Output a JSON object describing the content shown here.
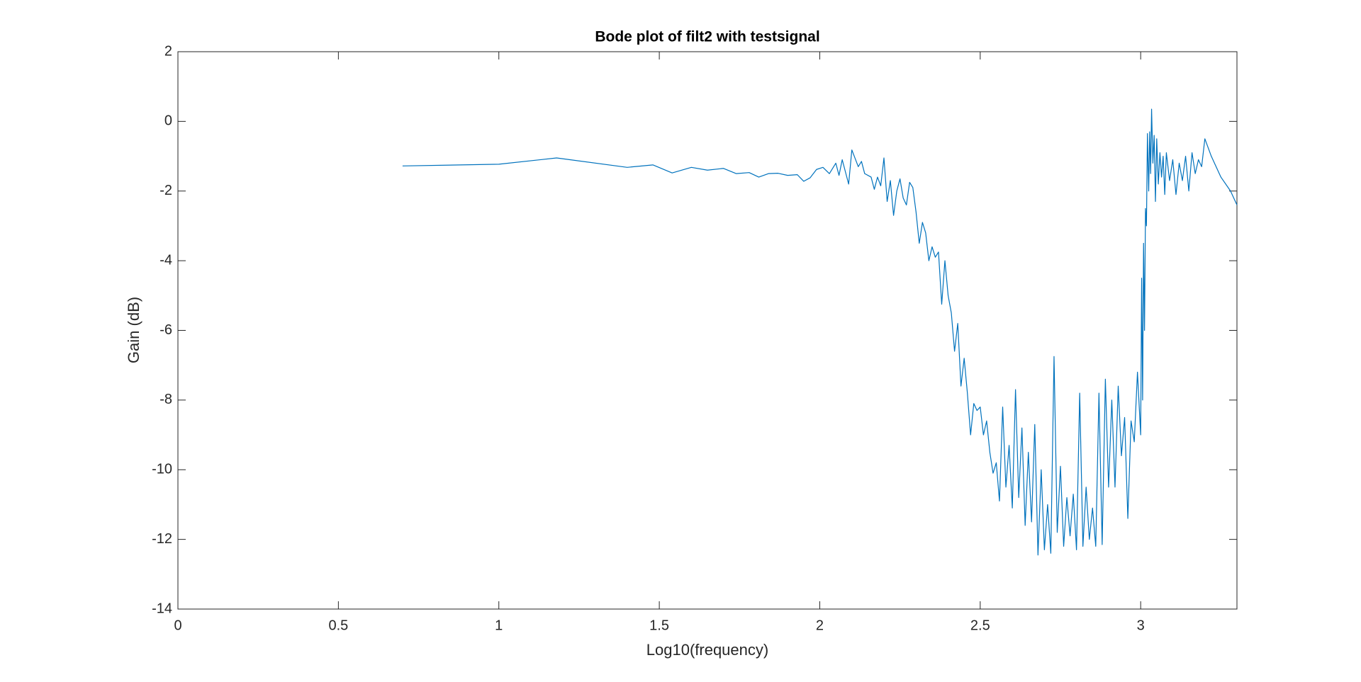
{
  "chart_data": {
    "type": "line",
    "title": "Bode plot of filt2 with testsignal",
    "xlabel": "Log10(frequency)",
    "ylabel": "Gain (dB)",
    "xlim": [
      0,
      3.3
    ],
    "ylim": [
      -14,
      2
    ],
    "xticks": [
      0,
      0.5,
      1,
      1.5,
      2,
      2.5,
      3
    ],
    "yticks": [
      -14,
      -12,
      -10,
      -8,
      -6,
      -4,
      -2,
      0,
      2
    ],
    "grid": false,
    "series": [
      {
        "color": "#0072bd",
        "x": [
          0.7,
          1.0,
          1.18,
          1.4,
          1.48,
          1.54,
          1.6,
          1.65,
          1.7,
          1.74,
          1.78,
          1.81,
          1.84,
          1.87,
          1.9,
          1.93,
          1.95,
          1.97,
          1.99,
          2.01,
          2.03,
          2.05,
          2.06,
          2.07,
          2.09,
          2.1,
          2.12,
          2.13,
          2.14,
          2.16,
          2.17,
          2.18,
          2.19,
          2.2,
          2.21,
          2.22,
          2.23,
          2.24,
          2.25,
          2.26,
          2.27,
          2.28,
          2.29,
          2.3,
          2.31,
          2.32,
          2.33,
          2.34,
          2.35,
          2.36,
          2.37,
          2.38,
          2.39,
          2.4,
          2.41,
          2.42,
          2.43,
          2.44,
          2.45,
          2.46,
          2.47,
          2.48,
          2.49,
          2.5,
          2.51,
          2.52,
          2.53,
          2.54,
          2.55,
          2.56,
          2.57,
          2.58,
          2.59,
          2.6,
          2.61,
          2.62,
          2.63,
          2.64,
          2.65,
          2.66,
          2.67,
          2.68,
          2.69,
          2.7,
          2.71,
          2.72,
          2.73,
          2.74,
          2.75,
          2.76,
          2.77,
          2.78,
          2.79,
          2.8,
          2.81,
          2.82,
          2.83,
          2.84,
          2.85,
          2.86,
          2.87,
          2.88,
          2.89,
          2.9,
          2.91,
          2.92,
          2.93,
          2.94,
          2.95,
          2.96,
          2.97,
          2.98,
          2.99,
          3.0,
          3.003,
          3.006,
          3.009,
          3.012,
          3.015,
          3.018,
          3.021,
          3.025,
          3.028,
          3.031,
          3.034,
          3.038,
          3.042,
          3.046,
          3.05,
          3.055,
          3.06,
          3.065,
          3.07,
          3.075,
          3.08,
          3.09,
          3.1,
          3.11,
          3.12,
          3.13,
          3.14,
          3.15,
          3.16,
          3.17,
          3.18,
          3.19,
          3.2,
          3.22,
          3.25,
          3.28,
          3.3
        ],
        "values": [
          -1.28,
          -1.23,
          -1.05,
          -1.32,
          -1.25,
          -1.48,
          -1.32,
          -1.4,
          -1.35,
          -1.5,
          -1.47,
          -1.6,
          -1.5,
          -1.49,
          -1.55,
          -1.53,
          -1.72,
          -1.62,
          -1.38,
          -1.32,
          -1.5,
          -1.2,
          -1.55,
          -1.1,
          -1.8,
          -0.82,
          -1.3,
          -1.15,
          -1.5,
          -1.6,
          -1.95,
          -1.6,
          -1.85,
          -1.05,
          -2.3,
          -1.7,
          -2.7,
          -2.0,
          -1.65,
          -2.2,
          -2.4,
          -1.75,
          -1.9,
          -2.6,
          -3.5,
          -2.9,
          -3.2,
          -4.0,
          -3.6,
          -3.9,
          -3.75,
          -5.25,
          -4.0,
          -5.0,
          -5.5,
          -6.6,
          -5.8,
          -7.6,
          -6.8,
          -7.8,
          -9.0,
          -8.1,
          -8.3,
          -8.2,
          -9.0,
          -8.6,
          -9.5,
          -10.1,
          -9.8,
          -10.9,
          -8.2,
          -10.5,
          -9.3,
          -11.1,
          -7.7,
          -10.8,
          -8.8,
          -11.6,
          -9.5,
          -11.5,
          -8.7,
          -12.45,
          -10.0,
          -12.3,
          -11.0,
          -12.4,
          -6.75,
          -11.8,
          -9.9,
          -12.2,
          -10.8,
          -11.9,
          -10.7,
          -12.3,
          -7.8,
          -12.2,
          -10.5,
          -12.0,
          -11.1,
          -12.2,
          -7.8,
          -12.15,
          -7.4,
          -10.5,
          -8.0,
          -10.5,
          -7.6,
          -9.6,
          -8.5,
          -11.4,
          -8.6,
          -9.2,
          -7.2,
          -9.0,
          -4.5,
          -8.0,
          -3.5,
          -6.0,
          -2.5,
          -3.0,
          -0.35,
          -2.0,
          -0.3,
          -1.5,
          0.35,
          -1.2,
          -0.4,
          -2.3,
          -0.5,
          -1.8,
          -0.9,
          -1.6,
          -1.0,
          -2.1,
          -0.9,
          -1.7,
          -1.1,
          -2.1,
          -1.2,
          -1.7,
          -1.0,
          -2.0,
          -0.9,
          -1.5,
          -1.1,
          -1.3,
          -0.5,
          -1.0,
          -1.6,
          -2.0,
          -2.4
        ]
      }
    ]
  }
}
